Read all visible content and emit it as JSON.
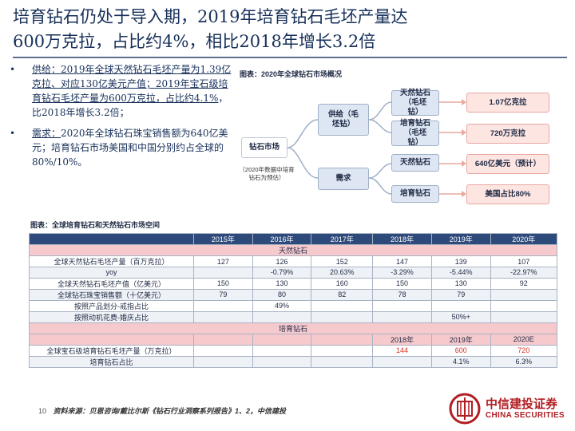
{
  "slide": {
    "title_line1": "培育钻石仍处于导入期，2019年培育钻石毛坯产量达",
    "title_line2": "600万克拉，占比约4%，相比2018年增长3.2倍",
    "page_number": "10"
  },
  "bullets": [
    {
      "marker": "•",
      "head": "供给：",
      "underlined": "2019年全球天然钻石毛坯产量为1.39亿克拉、对应130亿美元产值；2019年宝石级培育钻石毛坯产量为600万克拉，占比约4.1%",
      "rest": "，比2018年增长3.2倍；"
    },
    {
      "marker": "•",
      "head": "需求：",
      "underlined": "",
      "rest": "2020年全球钻石珠宝销售额为640亿美元；培育钻石市场美国和中国分别约占全球的 80%/10%。"
    }
  ],
  "diagram": {
    "caption": "图表：2020年全球钻石市场概况",
    "root": "钻石市场",
    "root_note": "（2020年数据中培育钻石为预估）",
    "supply": "供给（毛坯钻）",
    "demand": "需求",
    "supply_natural": "天然钻石（毛坯钻）",
    "supply_lab": "培育钻石（毛坯钻）",
    "demand_natural": "天然钻石",
    "demand_lab": "培育钻石",
    "val_supply_natural": "1.07亿克拉",
    "val_supply_lab": "720万克拉",
    "val_demand_natural": "640亿美元（预计）",
    "val_demand_lab": "美国占比80%"
  },
  "table": {
    "caption": "图表：全球培育钻石和天然钻石市场空间",
    "years": [
      "2015年",
      "2016年",
      "2017年",
      "2018年",
      "2019年",
      "2020年"
    ],
    "section_natural": "天然钻石",
    "natural_rows": [
      {
        "label": "全球天然钻石毛坯产量（百万克拉）",
        "cells": [
          "127",
          "126",
          "152",
          "147",
          "139",
          "107"
        ]
      },
      {
        "label": "yoy",
        "cells": [
          "",
          "-0.79%",
          "20.63%",
          "-3.29%",
          "-5.44%",
          "-22.97%"
        ]
      },
      {
        "label": "全球天然钻石毛坯产值（亿美元）",
        "cells": [
          "150",
          "130",
          "160",
          "150",
          "130",
          "92"
        ]
      },
      {
        "label": "全球钻石珠宝销售额（十亿美元）",
        "cells": [
          "79",
          "80",
          "82",
          "78",
          "79",
          ""
        ]
      },
      {
        "label": "按照产品划分-戒指占比",
        "cells": [
          "",
          "49%",
          "",
          "",
          "",
          ""
        ]
      },
      {
        "label": "按照动机花费-婚庆占比",
        "cells": [
          "",
          "",
          "",
          "",
          "50%+",
          ""
        ]
      }
    ],
    "section_lab": "培育钻石",
    "lab_years": [
      "2018年",
      "2019年",
      "2020E"
    ],
    "lab_rows": [
      {
        "label": "全球宝石级培育钻石毛坯产量（万克拉）",
        "cells": [
          "",
          "",
          "",
          "144",
          "600",
          "720"
        ]
      },
      {
        "label": "培育钻石占比",
        "cells": [
          "",
          "",
          "",
          "",
          "4.1%",
          "6.3%"
        ]
      }
    ]
  },
  "footer": {
    "source": "资料来源：贝恩咨询/戴比尔斯《钻石行业洞察系列报告》1、2，中信建投"
  },
  "logo": {
    "name_cn": "中信建投证券",
    "name_en": "CHINA SECURITIES"
  },
  "colors": {
    "title": "#17305a",
    "table_header": "#2e4a7a",
    "section_band": "#f6c9cd",
    "highlight_red": "#e0301e",
    "brand_red": "#b11e23"
  }
}
